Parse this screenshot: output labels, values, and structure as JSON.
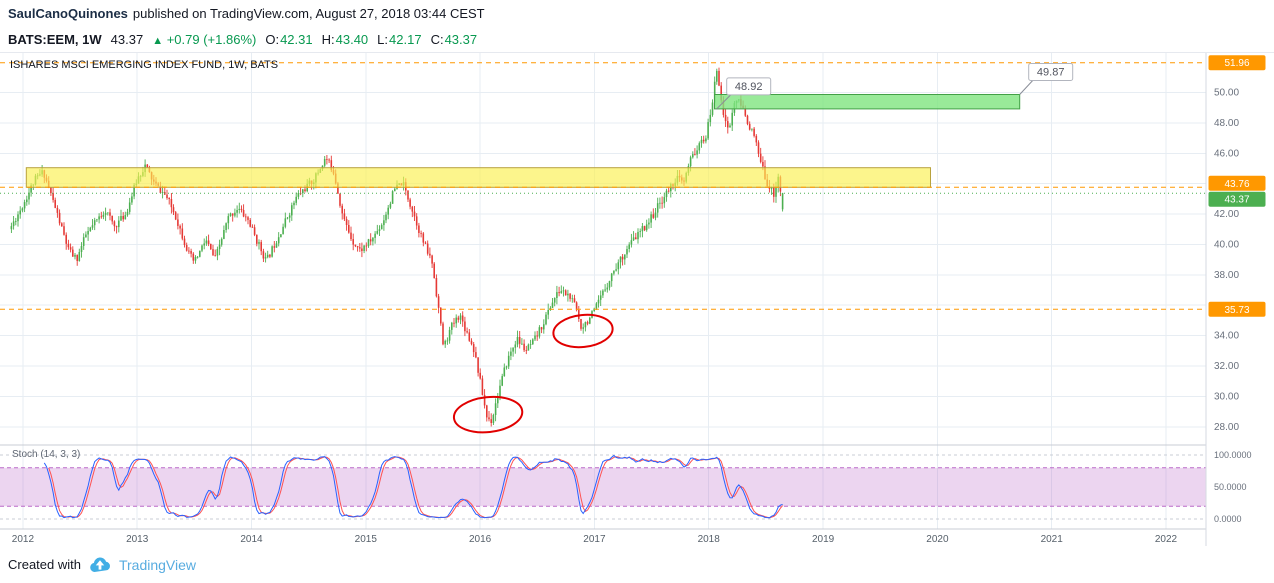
{
  "header": {
    "author": "SaulCanoQuinones",
    "published_text": "published on TradingView.com, August 27, 2018 03:44 CEST"
  },
  "symbol_bar": {
    "symbol": "BATS:EEM, 1W",
    "last_price": "43.37",
    "direction_arrow": "▲",
    "change_text": "+0.79 (+1.86%)",
    "ohlc": [
      {
        "label": "O:",
        "value": "42.31"
      },
      {
        "label": "H:",
        "value": "43.40"
      },
      {
        "label": "L:",
        "value": "42.17"
      },
      {
        "label": "C:",
        "value": "43.37"
      }
    ]
  },
  "chart_title": "ISHARES MSCI EMERGING INDEX FUND, 1W, BATS",
  "footer": {
    "created_with": "Created with",
    "brand": "TradingView"
  },
  "colors": {
    "candle_up": "#4CAF50",
    "candle_down": "#E53935",
    "accent_orange": "#FF9800",
    "badge_green": "#4CAF50",
    "grid": "#E7EDF3",
    "axis_text": "#69707C",
    "stoch_k": "#2962FF",
    "stoch_d": "#FF5252",
    "stoch_band": "#BA68C8",
    "annotation_red": "#E10000",
    "zone_yellow": "#FBF04F",
    "zone_yellow_border": "#B8A23E",
    "zone_green": "#7FE57F",
    "zone_green_border": "#43A047"
  },
  "chart_data": {
    "type": "candlestick",
    "title": "ISHARES MSCI EMERGING INDEX FUND, 1W, BATS",
    "symbol": "BATS:EEM",
    "timeframe": "1W",
    "x_domain": [
      2011.8,
      2022.35
    ],
    "x_ticks": [
      2012,
      2013,
      2014,
      2015,
      2016,
      2017,
      2018,
      2019,
      2020,
      2021,
      2022
    ],
    "y_domain": [
      26.8,
      52.6
    ],
    "y_grid": [
      28,
      30,
      32,
      34,
      36,
      38,
      40,
      42,
      44,
      46,
      48,
      50
    ],
    "y_tick_labels": [
      {
        "value": 50,
        "label": "50.00"
      },
      {
        "value": 48,
        "label": "48.00"
      },
      {
        "value": 46,
        "label": "46.00"
      },
      {
        "value": 42,
        "label": "42.00"
      },
      {
        "value": 40,
        "label": "40.00"
      },
      {
        "value": 38,
        "label": "38.00"
      },
      {
        "value": 34,
        "label": "34.00"
      },
      {
        "value": 32,
        "label": "32.00"
      },
      {
        "value": 30,
        "label": "30.00"
      },
      {
        "value": 28,
        "label": "28.00"
      }
    ],
    "levels": [
      {
        "value": 51.96,
        "label": "51.96"
      },
      {
        "value": 43.76,
        "label": "43.76"
      },
      {
        "value": 35.73,
        "label": "35.73"
      }
    ],
    "last_price": {
      "value": 43.37,
      "label": "43.37"
    },
    "last_candle": {
      "open": 42.31,
      "high": 43.4,
      "low": 42.17,
      "close": 43.37
    },
    "zones": [
      {
        "name": "resistance",
        "color": "yellow",
        "price_from": 43.76,
        "price_to": 45.05,
        "time_from": 2012.03,
        "time_to": 2019.94
      },
      {
        "name": "target",
        "color": "green",
        "price_from": 48.92,
        "price_to": 49.87,
        "time_from": 2018.05,
        "time_to": 2020.72
      }
    ],
    "callouts": [
      {
        "text": "48.92",
        "anchor_time": 2018.07,
        "anchor_price": 48.92
      },
      {
        "text": "49.87",
        "anchor_time": 2020.72,
        "anchor_price": 49.87
      }
    ],
    "ellipses": [
      {
        "time": 2016.07,
        "price": 28.8,
        "time_radius": 0.3,
        "price_radius": 1.15
      },
      {
        "time": 2016.9,
        "price": 34.3,
        "time_radius": 0.26,
        "price_radius": 1.05
      }
    ],
    "stochastic": {
      "label": "Stoch (14, 3, 3)",
      "k_period": 14,
      "k_smoothing": 3,
      "d_smoothing": 3,
      "upper_band": 80,
      "lower_band": 20,
      "scale_labels": [
        {
          "value": 100,
          "label": "100.0000"
        },
        {
          "value": 50,
          "label": "50.0000"
        },
        {
          "value": 0,
          "label": "0.0000"
        }
      ]
    },
    "price_path": [
      [
        2011.9,
        41.2
      ],
      [
        2012.0,
        42.6
      ],
      [
        2012.1,
        44.2
      ],
      [
        2012.18,
        44.8
      ],
      [
        2012.28,
        42.5
      ],
      [
        2012.4,
        39.6
      ],
      [
        2012.47,
        39.0
      ],
      [
        2012.55,
        40.6
      ],
      [
        2012.65,
        41.6
      ],
      [
        2012.72,
        42.3
      ],
      [
        2012.8,
        41.2
      ],
      [
        2012.9,
        42.0
      ],
      [
        2013.0,
        44.3
      ],
      [
        2013.07,
        45.2
      ],
      [
        2013.15,
        44.0
      ],
      [
        2013.25,
        43.2
      ],
      [
        2013.33,
        42.0
      ],
      [
        2013.45,
        39.4
      ],
      [
        2013.5,
        38.8
      ],
      [
        2013.6,
        40.3
      ],
      [
        2013.68,
        39.0
      ],
      [
        2013.8,
        41.8
      ],
      [
        2013.88,
        42.4
      ],
      [
        2013.97,
        41.6
      ],
      [
        2014.05,
        40.2
      ],
      [
        2014.13,
        38.9
      ],
      [
        2014.25,
        40.8
      ],
      [
        2014.4,
        43.2
      ],
      [
        2014.55,
        44.3
      ],
      [
        2014.65,
        45.7
      ],
      [
        2014.72,
        44.8
      ],
      [
        2014.8,
        41.8
      ],
      [
        2014.88,
        40.3
      ],
      [
        2014.95,
        39.6
      ],
      [
        2015.05,
        40.3
      ],
      [
        2015.15,
        41.5
      ],
      [
        2015.25,
        43.6
      ],
      [
        2015.32,
        44.1
      ],
      [
        2015.42,
        42.0
      ],
      [
        2015.5,
        40.2
      ],
      [
        2015.58,
        38.8
      ],
      [
        2015.63,
        36.2
      ],
      [
        2015.68,
        33.2
      ],
      [
        2015.75,
        34.6
      ],
      [
        2015.82,
        35.4
      ],
      [
        2015.88,
        34.3
      ],
      [
        2015.95,
        33.0
      ],
      [
        2016.02,
        30.2
      ],
      [
        2016.06,
        28.6
      ],
      [
        2016.1,
        28.4
      ],
      [
        2016.16,
        30.3
      ],
      [
        2016.24,
        32.4
      ],
      [
        2016.32,
        33.8
      ],
      [
        2016.4,
        33.0
      ],
      [
        2016.47,
        33.6
      ],
      [
        2016.55,
        34.8
      ],
      [
        2016.63,
        36.2
      ],
      [
        2016.7,
        37.0
      ],
      [
        2016.78,
        36.6
      ],
      [
        2016.84,
        35.8
      ],
      [
        2016.88,
        34.6
      ],
      [
        2016.93,
        34.9
      ],
      [
        2017.0,
        35.6
      ],
      [
        2017.08,
        36.9
      ],
      [
        2017.17,
        38.3
      ],
      [
        2017.25,
        39.3
      ],
      [
        2017.33,
        40.2
      ],
      [
        2017.42,
        41.0
      ],
      [
        2017.5,
        41.8
      ],
      [
        2017.58,
        42.8
      ],
      [
        2017.65,
        43.6
      ],
      [
        2017.72,
        44.4
      ],
      [
        2017.78,
        44.0
      ],
      [
        2017.85,
        45.8
      ],
      [
        2017.92,
        46.5
      ],
      [
        2017.98,
        47.2
      ],
      [
        2018.03,
        49.3
      ],
      [
        2018.07,
        51.55
      ],
      [
        2018.1,
        50.2
      ],
      [
        2018.14,
        48.0
      ],
      [
        2018.18,
        47.6
      ],
      [
        2018.23,
        49.6
      ],
      [
        2018.28,
        49.2
      ],
      [
        2018.33,
        48.3
      ],
      [
        2018.4,
        47.0
      ],
      [
        2018.46,
        45.2
      ],
      [
        2018.52,
        43.9
      ],
      [
        2018.57,
        43.3
      ],
      [
        2018.61,
        44.6
      ],
      [
        2018.64,
        42.4
      ],
      [
        2018.66,
        43.37
      ]
    ]
  }
}
